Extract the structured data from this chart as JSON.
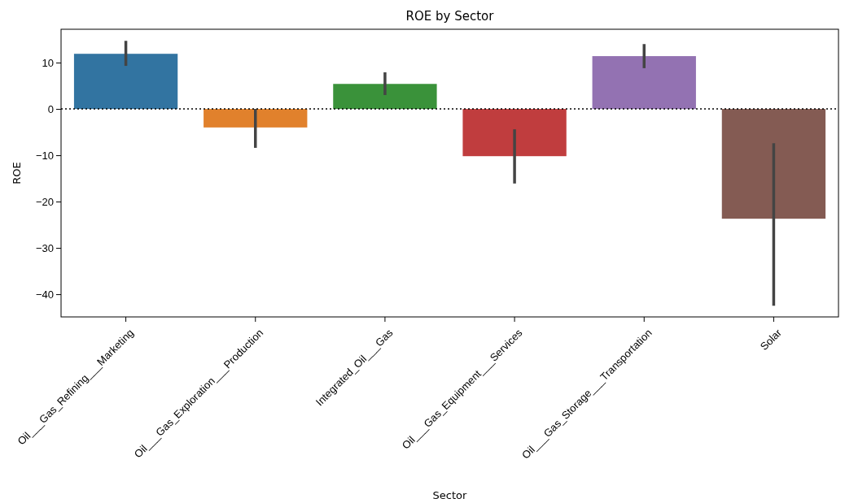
{
  "chart_data": {
    "type": "bar",
    "title": "ROE by Sector",
    "xlabel": "Sector",
    "ylabel": "ROE",
    "categories": [
      "Oil___Gas_Refining___Marketing",
      "Oil___Gas_Exploration___Production",
      "Integrated_Oil___Gas",
      "Oil___Gas_Equipment___Services",
      "Oil___Gas_Storage___Transportation",
      "Solar"
    ],
    "values": [
      11.9,
      -4.0,
      5.4,
      -10.2,
      11.4,
      -23.7
    ],
    "colors": [
      "#3274a1",
      "#e1812c",
      "#3a923a",
      "#c03d3e",
      "#9372b2",
      "#845b53"
    ],
    "errors": [
      [
        9.3,
        14.7
      ],
      [
        -8.4,
        0
      ],
      [
        3.0,
        7.9
      ],
      [
        -16.1,
        -4.4
      ],
      [
        8.8,
        14.0
      ],
      [
        -42.5,
        -7.4
      ]
    ],
    "ylim": [
      -44.9,
      17.2
    ],
    "yticks": [
      -40,
      -30,
      -20,
      -10,
      0,
      10
    ],
    "ref_lines": [
      {
        "axis": "y",
        "value": 0,
        "color": "#000000",
        "line_style": "dotted"
      }
    ],
    "grid": false
  }
}
